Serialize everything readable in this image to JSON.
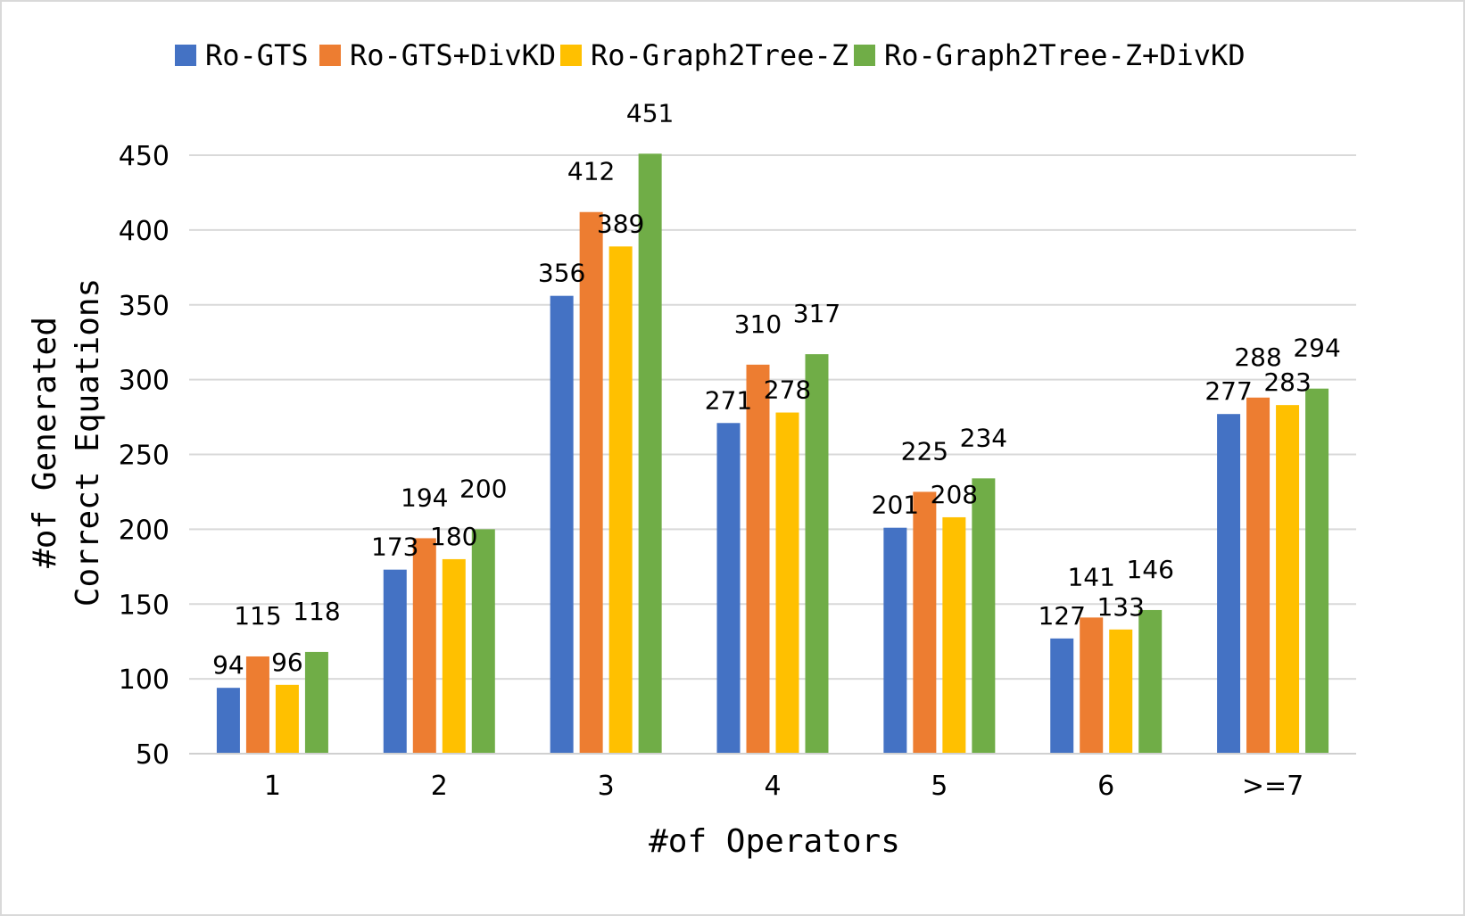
{
  "chart_data": {
    "type": "bar",
    "title": "",
    "xlabel": "#of Operators",
    "ylabel_lines": [
      "#of Generated",
      "Correct Equations"
    ],
    "categories": [
      "1",
      "2",
      "3",
      "4",
      "5",
      "6",
      ">=7"
    ],
    "ylim": [
      50,
      450
    ],
    "yticks": [
      50,
      100,
      150,
      200,
      250,
      300,
      350,
      400,
      450
    ],
    "grid": true,
    "legend_position": "top",
    "series": [
      {
        "name": "Ro-GTS",
        "color": "#4472C4",
        "values": [
          94,
          173,
          356,
          271,
          201,
          127,
          277
        ]
      },
      {
        "name": "Ro-GTS+DivKD",
        "color": "#ED7D31",
        "values": [
          115,
          194,
          412,
          310,
          225,
          141,
          288
        ]
      },
      {
        "name": "Ro-Graph2Tree-Z",
        "color": "#FFC000",
        "values": [
          96,
          180,
          389,
          278,
          208,
          133,
          283
        ]
      },
      {
        "name": "Ro-Graph2Tree-Z+DivKD",
        "color": "#70AD47",
        "values": [
          118,
          200,
          451,
          317,
          234,
          146,
          294
        ]
      }
    ]
  }
}
